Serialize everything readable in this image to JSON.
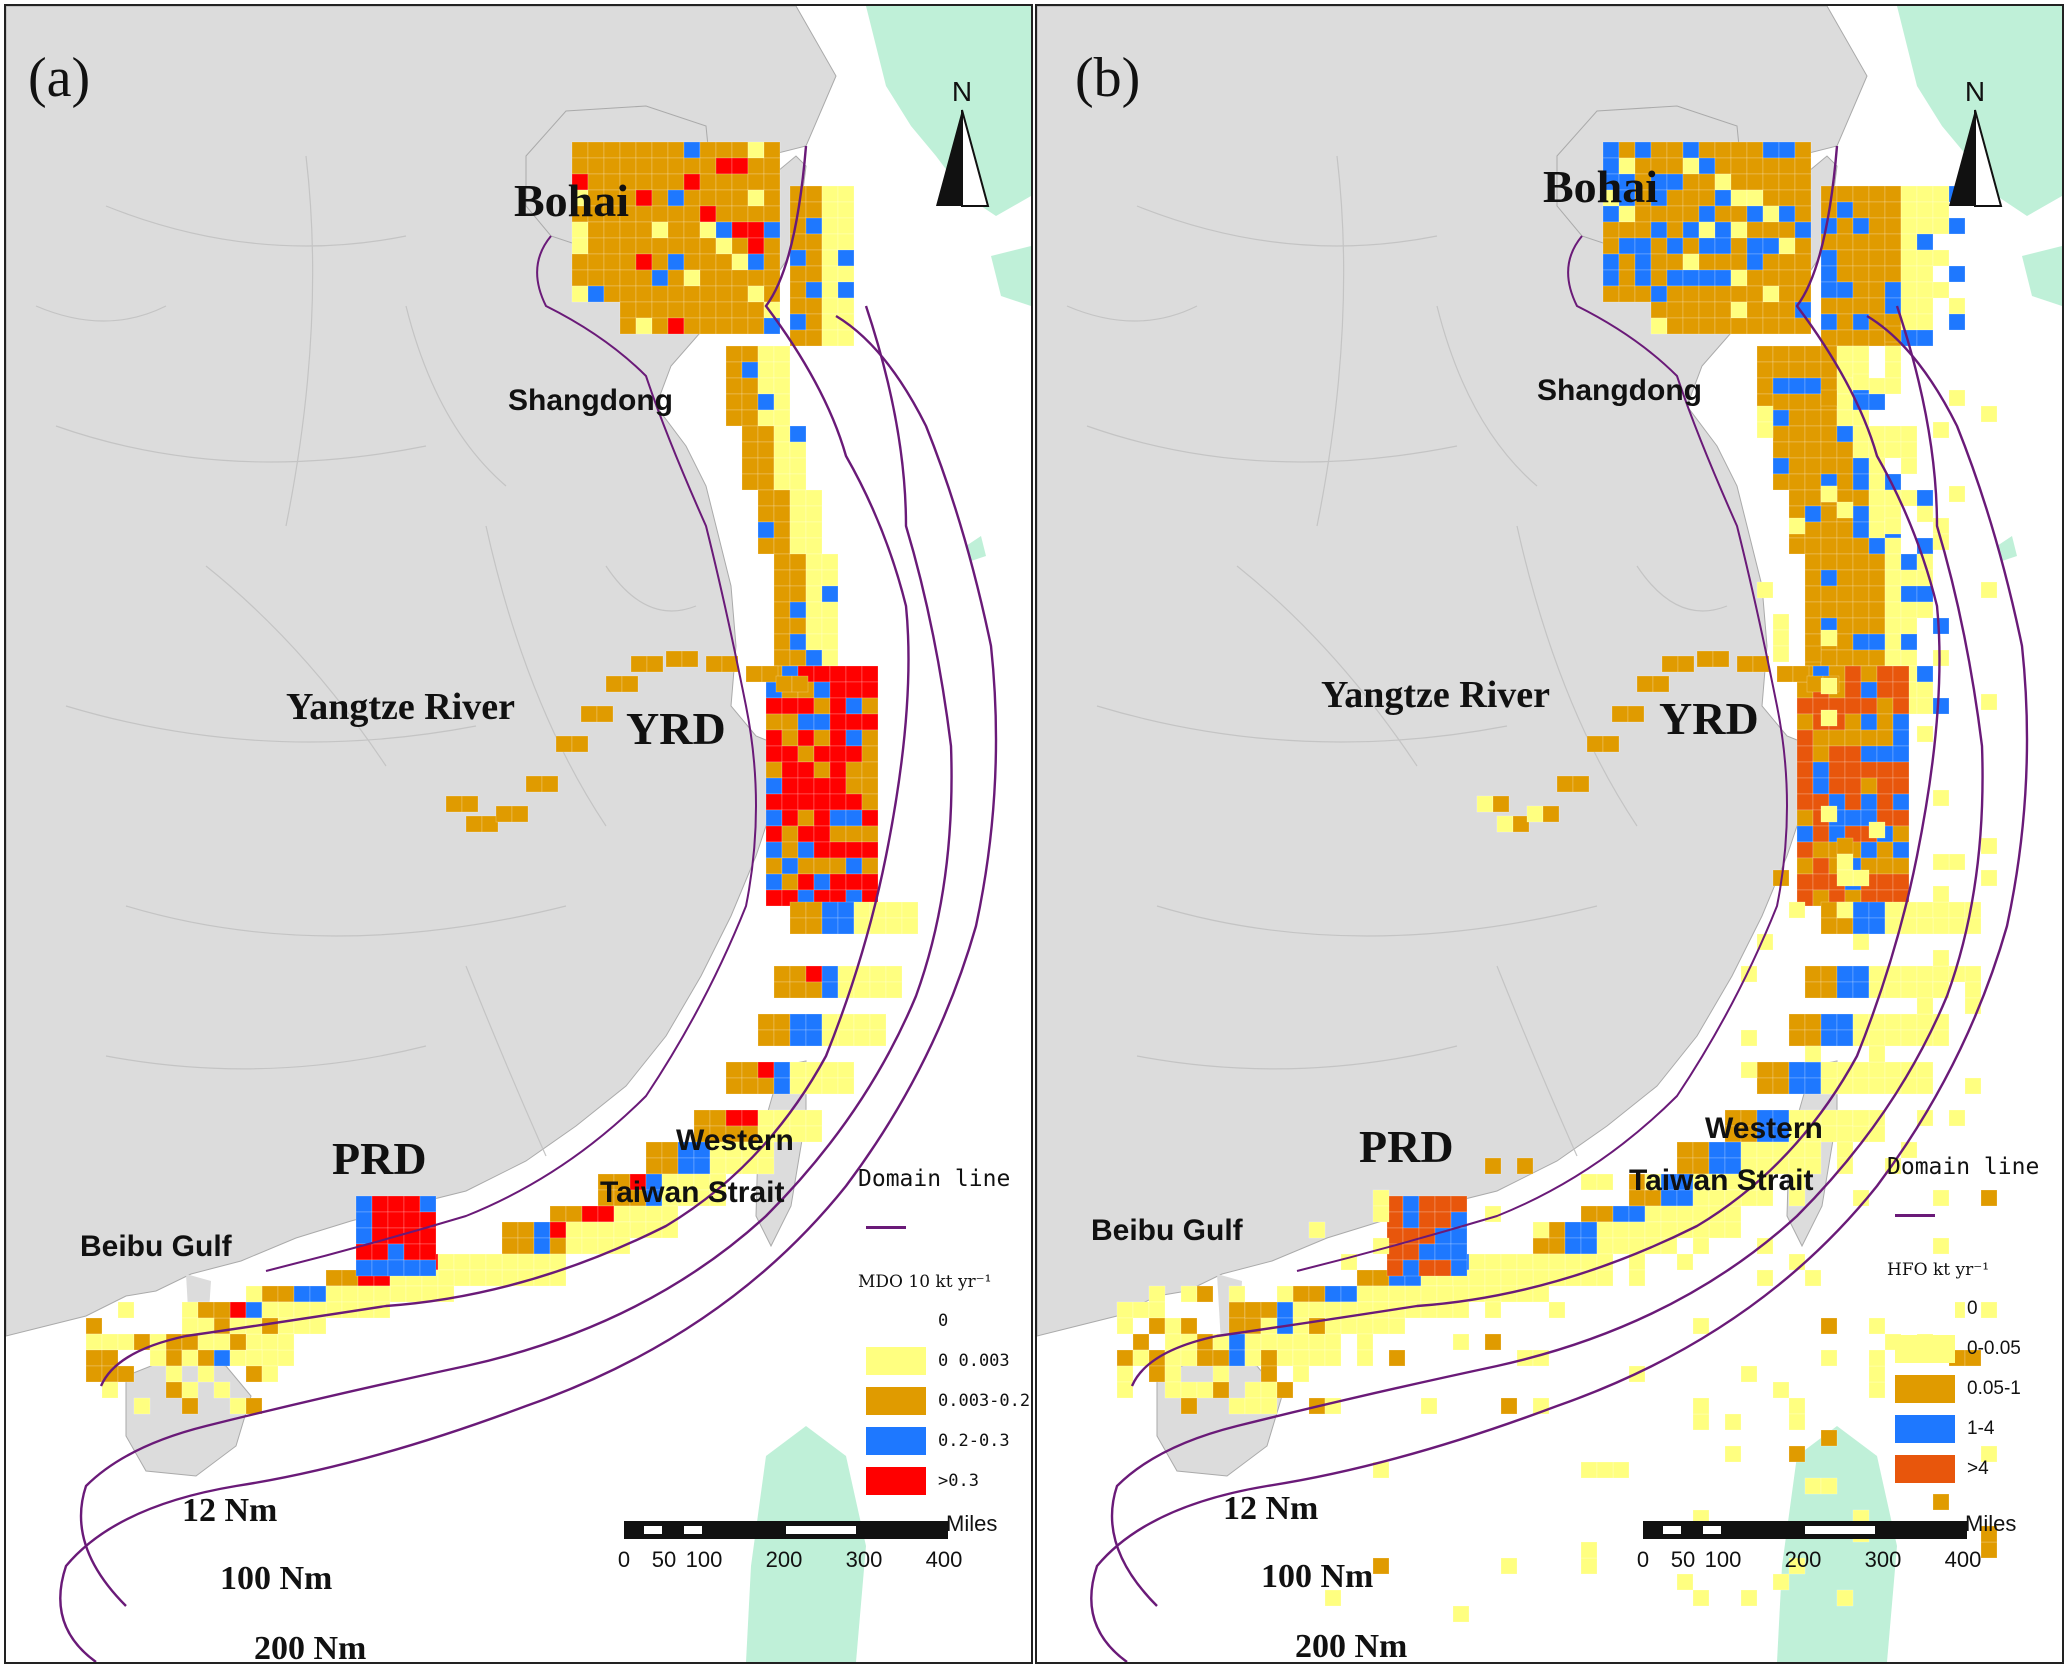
{
  "panels": [
    {
      "tag": "(a)",
      "north": "N",
      "regions": {
        "bohai": "Bohai",
        "shandong": "Shangdong",
        "yangtze": "Yangtze River",
        "yrd": "YRD",
        "prd": "PRD",
        "beibu": "Beibu Gulf",
        "western": "Western",
        "taiwan_strait": "Taiwan Strait"
      },
      "buffers": [
        "12 Nm",
        "100 Nm",
        "200 Nm"
      ],
      "legend": {
        "domain_title": "Domain line",
        "unit": "MDO  10 kt yr⁻¹",
        "classes": [
          {
            "label": "0",
            "color": "#ffffff"
          },
          {
            "label": "0 0.003",
            "color": "#ffff80"
          },
          {
            "label": "0.003-0.2",
            "color": "#e09b00"
          },
          {
            "label": "0.2-0.3",
            "color": "#1e78ff"
          },
          {
            "label": ">0.3",
            "color": "#ff0000"
          }
        ]
      },
      "scalebar": {
        "unit": "Miles",
        "ticks": [
          "0",
          "50",
          "100",
          "200",
          "300",
          "400"
        ]
      }
    },
    {
      "tag": "(b)",
      "north": "N",
      "regions": {
        "bohai": "Bohai",
        "shandong": "Shangdong",
        "yangtze": "Yangtze River",
        "yrd": "YRD",
        "prd": "PRD",
        "beibu": "Beibu Gulf",
        "western": "Western",
        "taiwan_strait": "Taiwan Strait"
      },
      "buffers": [
        "12 Nm",
        "100 Nm",
        "200 Nm"
      ],
      "legend": {
        "domain_title": "Domain line",
        "unit": "HFO  kt yr⁻¹",
        "classes": [
          {
            "label": "0",
            "color": "#ffffff"
          },
          {
            "label": "0-0.05",
            "color": "#ffff80"
          },
          {
            "label": "0.05-1",
            "color": "#e09b00"
          },
          {
            "label": "1-4",
            "color": "#1e78ff"
          },
          {
            "label": ">4",
            "color": "#e8560c"
          }
        ]
      },
      "scalebar": {
        "unit": "Miles",
        "ticks": [
          "0",
          "50",
          "100",
          "200",
          "300",
          "400"
        ]
      }
    }
  ],
  "colors": {
    "land": "#dcdcdc",
    "foreign_land": "#bff0d8",
    "boundary": "#c4c4c4",
    "domain_line": "#6a1a78",
    "sea": "#ffffff"
  }
}
